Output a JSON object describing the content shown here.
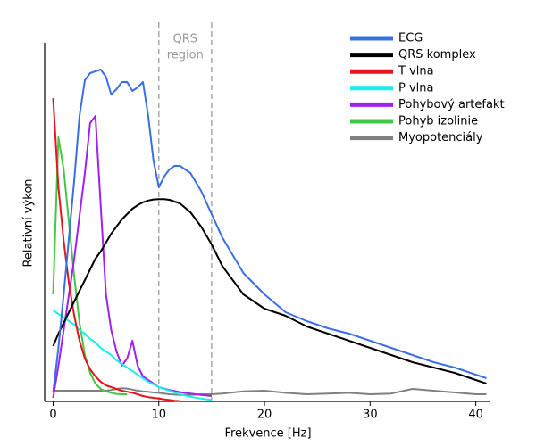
{
  "chart_data": {
    "type": "line",
    "xlabel": "Frekvence [Hz]",
    "ylabel": "Relativní výkon",
    "annotation": [
      "QRS",
      "region"
    ],
    "vlines": [
      10,
      15
    ],
    "x": [
      0,
      0.5,
      1,
      1.5,
      2,
      2.5,
      3,
      3.5,
      4,
      4.5,
      5,
      5.5,
      6,
      6.5,
      7,
      7.5,
      8,
      8.5,
      9,
      9.5,
      10,
      10.5,
      11,
      11.5,
      12,
      13,
      14,
      15,
      16,
      18,
      20,
      22,
      24,
      26,
      28,
      30,
      32,
      34,
      36,
      38,
      40,
      41
    ],
    "xlim": [
      -0.8,
      41.3
    ],
    "xticks": [
      0,
      10,
      20,
      30,
      40
    ],
    "ylim": [
      0,
      1
    ],
    "legend": "upper right",
    "series": [
      {
        "name": "ECG",
        "color": "#3b6fe6",
        "values": [
          0.025,
          0.15,
          0.3,
          0.46,
          0.62,
          0.8,
          0.9,
          0.92,
          0.925,
          0.93,
          0.91,
          0.86,
          0.875,
          0.895,
          0.895,
          0.87,
          0.88,
          0.895,
          0.8,
          0.675,
          0.6,
          0.63,
          0.65,
          0.66,
          0.66,
          0.64,
          0.59,
          0.525,
          0.46,
          0.36,
          0.3,
          0.25,
          0.225,
          0.205,
          0.19,
          0.17,
          0.15,
          0.13,
          0.11,
          0.095,
          0.075,
          0.065
        ]
      },
      {
        "name": "QRS komplex",
        "color": "#000000",
        "values": [
          0.155,
          0.19,
          0.22,
          0.25,
          0.28,
          0.31,
          0.34,
          0.37,
          0.4,
          0.42,
          0.445,
          0.47,
          0.49,
          0.51,
          0.525,
          0.54,
          0.55,
          0.558,
          0.563,
          0.566,
          0.567,
          0.567,
          0.565,
          0.56,
          0.555,
          0.53,
          0.49,
          0.44,
          0.38,
          0.3,
          0.26,
          0.24,
          0.21,
          0.19,
          0.17,
          0.15,
          0.13,
          0.11,
          0.095,
          0.08,
          0.06,
          0.05
        ]
      },
      {
        "name": "T vlna",
        "color": "#e8141e",
        "values": [
          0.85,
          0.6,
          0.45,
          0.33,
          0.24,
          0.17,
          0.12,
          0.09,
          0.07,
          0.055,
          0.045,
          0.04,
          0.035,
          0.03,
          0.027,
          0.024,
          0.02,
          0.015,
          0.012,
          0.01,
          0.008,
          0.006,
          0.004,
          0.002,
          0.001,
          null,
          null,
          null,
          null,
          null,
          null,
          null,
          null,
          null,
          null,
          null,
          null,
          null,
          null,
          null,
          null,
          null
        ]
      },
      {
        "name": "P vlna",
        "color": "#19eeee",
        "values": [
          0.255,
          0.245,
          0.235,
          0.225,
          0.215,
          0.2,
          0.19,
          0.175,
          0.165,
          0.15,
          0.14,
          0.13,
          0.115,
          0.105,
          0.095,
          0.085,
          0.075,
          0.065,
          0.055,
          0.048,
          0.04,
          0.035,
          0.03,
          0.025,
          0.02,
          0.013,
          0.008,
          0.004,
          null,
          null,
          null,
          null,
          null,
          null,
          null,
          null,
          null,
          null,
          null,
          null,
          null,
          null
        ]
      },
      {
        "name": "Pohybový artefakt",
        "color": "#a020f0",
        "values": [
          0.01,
          0.1,
          0.2,
          0.3,
          0.4,
          0.52,
          0.64,
          0.78,
          0.8,
          0.55,
          0.3,
          0.2,
          0.14,
          0.1,
          0.12,
          0.17,
          0.1,
          0.07,
          0.06,
          0.05,
          0.04,
          0.036,
          0.032,
          0.029,
          0.026,
          0.022,
          0.018,
          0.015,
          null,
          null,
          null,
          null,
          null,
          null,
          null,
          null,
          null,
          null,
          null,
          null,
          null,
          null
        ]
      },
      {
        "name": "Pohyb izolinie",
        "color": "#44c844",
        "values": [
          0.3,
          0.74,
          0.65,
          0.5,
          0.35,
          0.22,
          0.13,
          0.08,
          0.05,
          0.035,
          0.028,
          0.024,
          0.021,
          0.02,
          0.02,
          null,
          null,
          null,
          null,
          null,
          null,
          null,
          null,
          null,
          null,
          null,
          null,
          null,
          null,
          null,
          null,
          null,
          null,
          null,
          null,
          null,
          null,
          null,
          null,
          null,
          null,
          null
        ]
      },
      {
        "name": "Myopotenciály",
        "color": "#808080",
        "values": [
          0.03,
          0.03,
          0.03,
          0.03,
          0.03,
          0.03,
          0.03,
          0.03,
          0.03,
          0.03,
          0.03,
          0.032,
          0.035,
          0.037,
          0.036,
          0.033,
          0.03,
          0.028,
          0.027,
          0.025,
          0.024,
          0.022,
          0.02,
          0.019,
          0.018,
          0.018,
          0.02,
          0.02,
          0.022,
          0.028,
          0.03,
          0.024,
          0.02,
          0.022,
          0.024,
          0.02,
          0.022,
          0.035,
          0.03,
          0.025,
          0.02,
          0.02
        ]
      }
    ]
  }
}
